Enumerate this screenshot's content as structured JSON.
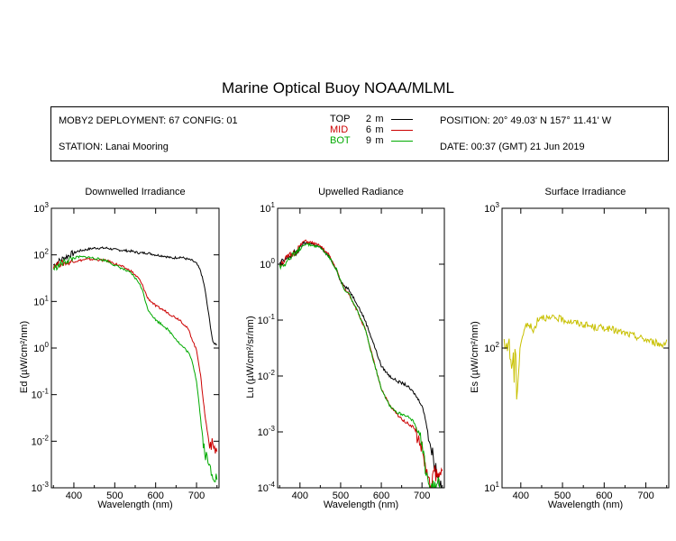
{
  "title": "Marine Optical Buoy NOAA/MLML",
  "info": {
    "deployment": "MOBY2 DEPLOYMENT: 67 CONFIG: 01",
    "station": "STATION: Lanai Mooring",
    "position": "POSITION: 20° 49.03' N   157° 11.41' W",
    "date": "DATE: 00:37 (GMT) 21 Jun 2019"
  },
  "legend": [
    {
      "name": "TOP",
      "depth": "2",
      "unit": "m",
      "color": "#000000"
    },
    {
      "name": "MID",
      "depth": "6",
      "unit": "m",
      "color": "#cc0000"
    },
    {
      "name": "BOT",
      "depth": "9",
      "unit": "m",
      "color": "#00aa00"
    }
  ],
  "chart_data": [
    {
      "type": "line",
      "title": "Downwelled Irradiance",
      "xlabel": "Wavelength (nm)",
      "ylabel": "Ed (µW/cm²/nm)",
      "xlim": [
        345,
        755
      ],
      "ylim": [
        0.001,
        1000
      ],
      "yscale": "log",
      "xticks": [
        "400",
        "500",
        "600",
        "700"
      ],
      "yticks": [
        {
          "base": "10",
          "exp": "-3"
        },
        {
          "base": "10",
          "exp": "-2"
        },
        {
          "base": "10",
          "exp": "-1"
        },
        {
          "base": "10",
          "exp": "0"
        },
        {
          "base": "10",
          "exp": "1"
        },
        {
          "base": "10",
          "exp": "2"
        },
        {
          "base": "10",
          "exp": "3"
        }
      ],
      "series": [
        {
          "name": "TOP",
          "color": "#000000",
          "x": [
            350,
            370,
            390,
            410,
            430,
            450,
            480,
            500,
            520,
            540,
            560,
            580,
            600,
            620,
            640,
            660,
            680,
            690,
            700,
            710,
            720,
            730,
            740,
            750
          ],
          "y": [
            60,
            80,
            100,
            120,
            130,
            140,
            140,
            130,
            125,
            120,
            110,
            110,
            100,
            95,
            85,
            90,
            80,
            75,
            65,
            45,
            20,
            5,
            1.3,
            1.2
          ]
        },
        {
          "name": "MID",
          "color": "#cc0000",
          "x": [
            350,
            370,
            390,
            410,
            430,
            450,
            480,
            500,
            520,
            540,
            560,
            570,
            580,
            600,
            620,
            640,
            660,
            680,
            690,
            700,
            705,
            710,
            715,
            720,
            730,
            740,
            750
          ],
          "y": [
            60,
            65,
            70,
            75,
            80,
            80,
            75,
            65,
            55,
            45,
            30,
            20,
            12,
            8,
            6.5,
            5,
            4,
            2.5,
            1.5,
            0.9,
            0.5,
            0.25,
            0.1,
            0.04,
            0.01,
            0.008,
            0.006
          ]
        },
        {
          "name": "BOT",
          "color": "#00aa00",
          "x": [
            350,
            370,
            390,
            410,
            430,
            450,
            480,
            500,
            520,
            540,
            560,
            570,
            580,
            600,
            620,
            640,
            660,
            670,
            680,
            690,
            700,
            705,
            710,
            715,
            720,
            730,
            740,
            750
          ],
          "y": [
            50,
            65,
            80,
            90,
            90,
            85,
            75,
            60,
            50,
            40,
            25,
            15,
            7,
            4,
            3,
            2,
            1.2,
            1.0,
            0.8,
            0.5,
            0.2,
            0.08,
            0.03,
            0.012,
            0.006,
            0.003,
            0.002,
            0.0015
          ]
        }
      ]
    },
    {
      "type": "line",
      "title": "Upwelled Radiance",
      "xlabel": "Wavelength (nm)",
      "ylabel": "Lu (µW/cm²/sr/nm)",
      "xlim": [
        345,
        755
      ],
      "ylim": [
        0.0001,
        10
      ],
      "yscale": "log",
      "xticks": [
        "400",
        "500",
        "600",
        "700"
      ],
      "yticks": [
        {
          "base": "10",
          "exp": "-4"
        },
        {
          "base": "10",
          "exp": "-3"
        },
        {
          "base": "10",
          "exp": "-2"
        },
        {
          "base": "10",
          "exp": "-1"
        },
        {
          "base": "10",
          "exp": "0"
        },
        {
          "base": "10",
          "exp": "1"
        }
      ],
      "series": [
        {
          "name": "TOP",
          "color": "#000000",
          "x": [
            350,
            370,
            390,
            410,
            430,
            450,
            470,
            490,
            500,
            510,
            520,
            540,
            560,
            580,
            600,
            620,
            640,
            660,
            680,
            700,
            710,
            720,
            730,
            740,
            750
          ],
          "y": [
            1.0,
            1.3,
            1.6,
            2.4,
            2.3,
            2.0,
            1.4,
            0.8,
            0.5,
            0.4,
            0.35,
            0.2,
            0.1,
            0.04,
            0.015,
            0.01,
            0.008,
            0.007,
            0.005,
            0.003,
            0.0015,
            0.0006,
            0.0003,
            0.00015,
            0.0001
          ]
        },
        {
          "name": "MID",
          "color": "#cc0000",
          "x": [
            350,
            370,
            390,
            410,
            430,
            450,
            470,
            490,
            500,
            510,
            520,
            540,
            560,
            580,
            600,
            620,
            640,
            660,
            680,
            700,
            710,
            720,
            730,
            740,
            750
          ],
          "y": [
            1.0,
            1.3,
            1.7,
            2.6,
            2.4,
            2.1,
            1.5,
            0.8,
            0.5,
            0.35,
            0.3,
            0.15,
            0.07,
            0.02,
            0.006,
            0.003,
            0.002,
            0.0015,
            0.0012,
            0.0005,
            0.0002,
            0.0001,
            0.0002,
            0.00015,
            0.0002
          ]
        },
        {
          "name": "BOT",
          "color": "#00aa00",
          "x": [
            350,
            370,
            390,
            410,
            430,
            450,
            470,
            490,
            500,
            510,
            520,
            540,
            560,
            580,
            600,
            620,
            640,
            660,
            680,
            700,
            710,
            720,
            730,
            740,
            750
          ],
          "y": [
            0.9,
            1.2,
            1.5,
            2.3,
            2.2,
            2.0,
            1.4,
            0.8,
            0.5,
            0.33,
            0.3,
            0.15,
            0.07,
            0.02,
            0.006,
            0.003,
            0.0022,
            0.002,
            0.0015,
            0.0006,
            0.0002,
            0.0001,
            0.0001,
            0.00012,
            0.0001
          ]
        }
      ]
    },
    {
      "type": "line",
      "title": "Surface Irradiance",
      "xlabel": "Wavelength (nm)",
      "ylabel": "Es (µW/cm²/nm)",
      "xlim": [
        355,
        755
      ],
      "ylim": [
        10,
        1000
      ],
      "yscale": "log",
      "xticks": [
        "400",
        "500",
        "600",
        "700"
      ],
      "yticks": [
        {
          "base": "10",
          "exp": "1"
        },
        {
          "base": "10",
          "exp": "2"
        },
        {
          "base": "10",
          "exp": "3"
        }
      ],
      "series": [
        {
          "name": "Es",
          "color": "#c8c000",
          "x": [
            360,
            370,
            380,
            390,
            400,
            410,
            420,
            430,
            440,
            450,
            460,
            470,
            480,
            500,
            520,
            540,
            560,
            580,
            600,
            620,
            640,
            660,
            680,
            700,
            720,
            740,
            750
          ],
          "y": [
            100,
            110,
            80,
            60,
            110,
            140,
            150,
            130,
            160,
            170,
            165,
            160,
            165,
            160,
            155,
            150,
            145,
            140,
            140,
            135,
            130,
            125,
            120,
            115,
            110,
            105,
            115
          ]
        }
      ]
    }
  ]
}
